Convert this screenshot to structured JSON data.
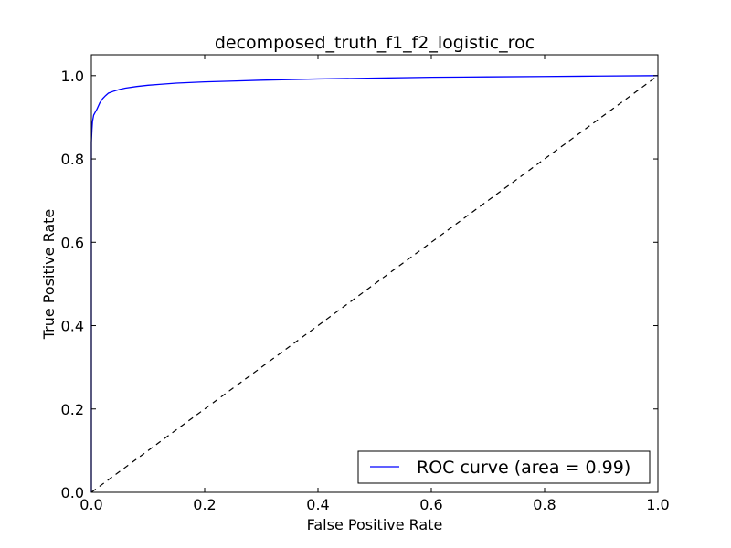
{
  "chart_data": {
    "type": "line",
    "title": "decomposed_truth_f1_f2_logistic_roc",
    "xlabel": "False Positive Rate",
    "ylabel": "True Positive Rate",
    "xlim": [
      0.0,
      1.0
    ],
    "ylim": [
      0.0,
      1.05
    ],
    "x_ticks": [
      "0.0",
      "0.2",
      "0.4",
      "0.6",
      "0.8",
      "1.0"
    ],
    "y_ticks": [
      "0.0",
      "0.2",
      "0.4",
      "0.6",
      "0.8",
      "1.0"
    ],
    "grid": false,
    "legend_position": "lower-right",
    "series": [
      {
        "name": "ROC curve (area = 0.99)",
        "color": "#0000ff",
        "style": "solid",
        "x": [
          0.0,
          0.0,
          0.001,
          0.002,
          0.004,
          0.006,
          0.01,
          0.015,
          0.02,
          0.025,
          0.03,
          0.04,
          0.05,
          0.06,
          0.08,
          0.1,
          0.12,
          0.15,
          0.2,
          0.25,
          0.3,
          0.4,
          0.5,
          0.6,
          0.7,
          0.8,
          0.9,
          1.0
        ],
        "y": [
          0.0,
          0.84,
          0.87,
          0.89,
          0.905,
          0.91,
          0.92,
          0.935,
          0.945,
          0.952,
          0.958,
          0.963,
          0.967,
          0.97,
          0.974,
          0.977,
          0.979,
          0.982,
          0.985,
          0.987,
          0.989,
          0.992,
          0.994,
          0.996,
          0.997,
          0.998,
          0.999,
          1.0
        ]
      },
      {
        "name": "",
        "color": "#000000",
        "style": "dashed",
        "x": [
          0.0,
          1.0
        ],
        "y": [
          0.0,
          1.0
        ]
      }
    ]
  }
}
